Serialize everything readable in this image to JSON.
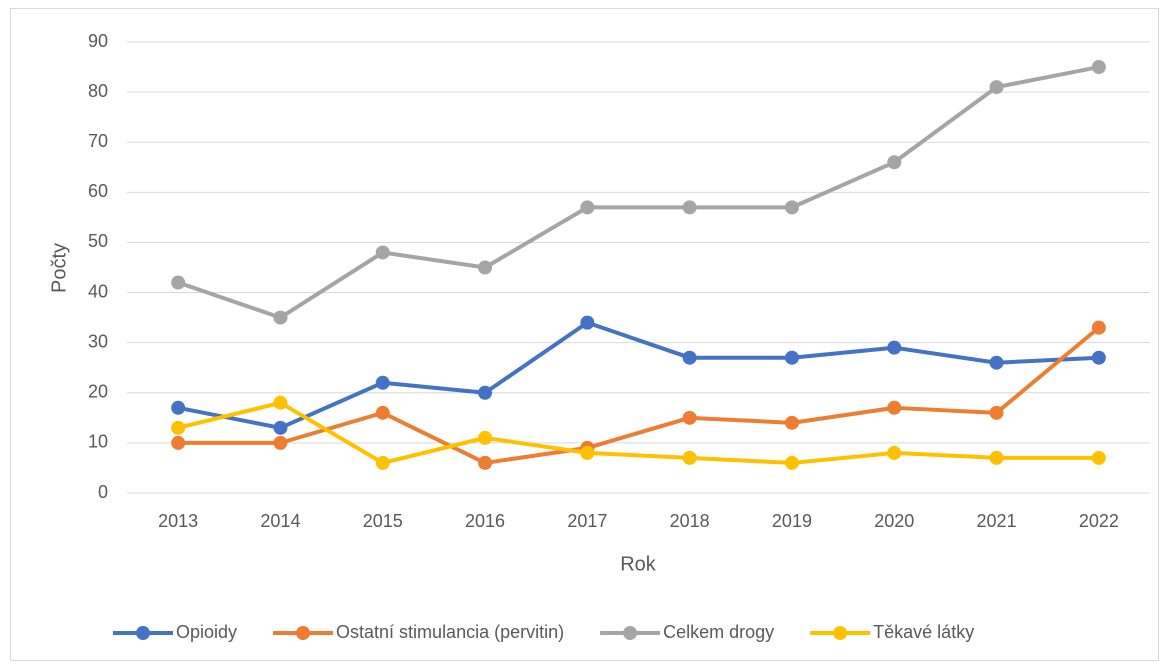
{
  "chart_data": {
    "type": "line",
    "xlabel": "Rok",
    "ylabel": "Počty",
    "categories": [
      "2013",
      "2014",
      "2015",
      "2016",
      "2017",
      "2018",
      "2019",
      "2020",
      "2021",
      "2022"
    ],
    "series": [
      {
        "name": "Opioidy",
        "color": "#4472c4",
        "values": [
          17,
          13,
          22,
          20,
          34,
          27,
          27,
          29,
          26,
          27
        ]
      },
      {
        "name": "Ostatní stimulancia (pervitin)",
        "color": "#ed7d31",
        "values": [
          10,
          10,
          16,
          6,
          9,
          15,
          14,
          17,
          16,
          33
        ]
      },
      {
        "name": "Celkem drogy",
        "color": "#a5a5a5",
        "values": [
          42,
          35,
          48,
          45,
          57,
          57,
          57,
          66,
          81,
          85
        ]
      },
      {
        "name": "Těkavé látky",
        "color": "#ffc000",
        "values": [
          13,
          18,
          6,
          11,
          8,
          7,
          6,
          8,
          7,
          7
        ]
      }
    ],
    "ylim": [
      0,
      90
    ],
    "yticks": [
      0,
      10,
      20,
      30,
      40,
      50,
      60,
      70,
      80,
      90
    ],
    "grid": true,
    "legend": "bottom"
  }
}
